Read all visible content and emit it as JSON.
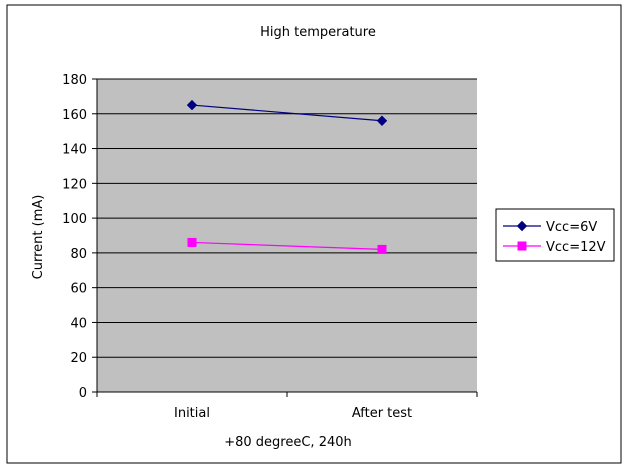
{
  "chart_data": {
    "type": "line",
    "title": "High temperature",
    "xlabel": "+80 degreeC, 240h",
    "ylabel": "Current (mA)",
    "categories": [
      "Initial",
      "After test"
    ],
    "ylim": [
      0,
      180
    ],
    "yticks": [
      0,
      20,
      40,
      60,
      80,
      100,
      120,
      140,
      160,
      180
    ],
    "grid": true,
    "legend": "right",
    "plot_background": "#c0c0c0",
    "series": [
      {
        "name": "Vcc=6V",
        "values": [
          165,
          156
        ],
        "color": "#000080",
        "marker": "diamond"
      },
      {
        "name": "Vcc=12V",
        "values": [
          86,
          82
        ],
        "color": "#ff00ff",
        "marker": "square"
      }
    ]
  }
}
